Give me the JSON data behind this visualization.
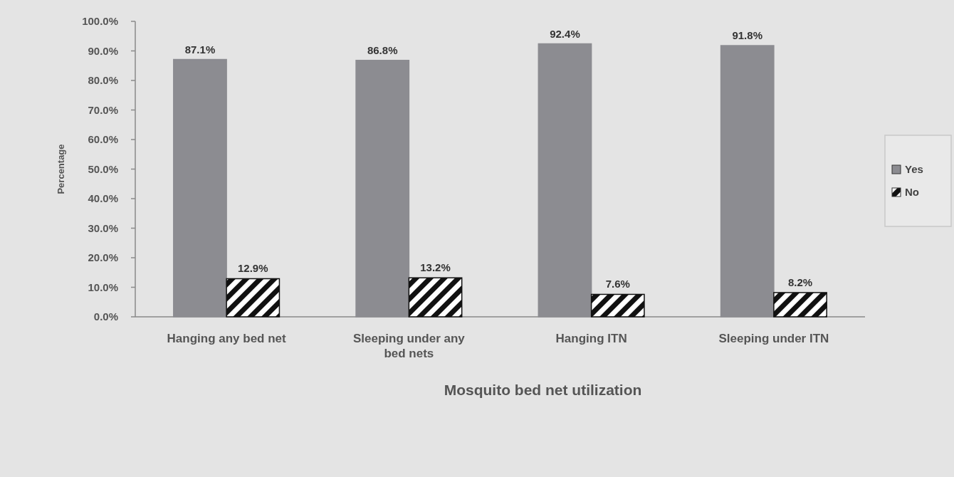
{
  "chart_data": {
    "type": "bar",
    "xlabel": "Mosquito bed net utilization",
    "ylabel": "Percentage",
    "categories": [
      "Hanging any bed net",
      "Sleeping under any bed nets",
      "Hanging ITN",
      "Sleeping under ITN"
    ],
    "series": [
      {
        "name": "Yes",
        "color": "#8c8c91",
        "values": [
          87.1,
          86.8,
          92.4,
          91.8
        ],
        "value_labels": [
          "87.1%",
          "86.8%",
          "92.4%",
          "91.8%"
        ]
      },
      {
        "name": "No",
        "color": "#111111",
        "values": [
          12.9,
          13.2,
          7.6,
          8.2
        ],
        "value_labels": [
          "12.9%",
          "13.2%",
          "7.6%",
          "8.2%"
        ]
      }
    ],
    "ylim": [
      0,
      100
    ],
    "yticks": [
      {
        "value": 0,
        "label": "0.0%"
      },
      {
        "value": 10,
        "label": "10.0%"
      },
      {
        "value": 20,
        "label": "20.0%"
      },
      {
        "value": 30,
        "label": "30.0%"
      },
      {
        "value": 40,
        "label": "40.0%"
      },
      {
        "value": 50,
        "label": "50.0%"
      },
      {
        "value": 60,
        "label": "60.0%"
      },
      {
        "value": 70,
        "label": "70.0%"
      },
      {
        "value": 80,
        "label": "80.0%"
      },
      {
        "value": 90,
        "label": "90.0%"
      },
      {
        "value": 100,
        "label": "100.0%"
      }
    ],
    "legend": "right"
  }
}
